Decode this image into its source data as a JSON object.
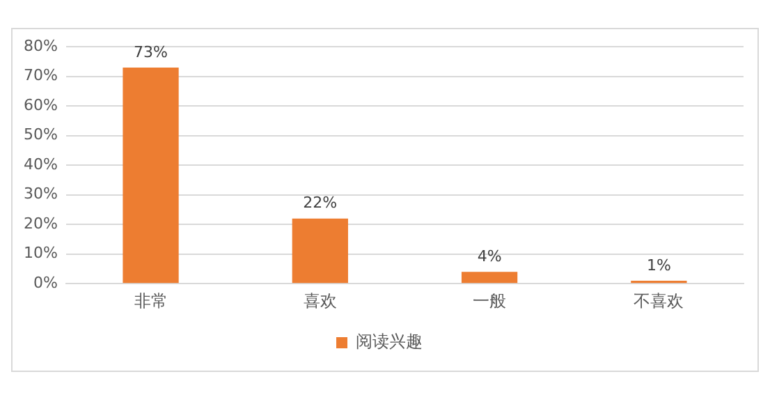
{
  "chart_data": {
    "type": "bar",
    "categories": [
      "非常",
      "喜欢",
      "一般",
      "不喜欢"
    ],
    "series": [
      {
        "name": "阅读兴趣",
        "color": "#ed7d31",
        "values": [
          73,
          22,
          4,
          1
        ],
        "value_labels": [
          "73%",
          "22%",
          "4%",
          "1%"
        ]
      }
    ],
    "ylim": [
      0,
      80
    ],
    "yticks": [
      {
        "value": 0,
        "label": "0%"
      },
      {
        "value": 10,
        "label": "10%"
      },
      {
        "value": 20,
        "label": "20%"
      },
      {
        "value": 30,
        "label": "30%"
      },
      {
        "value": 40,
        "label": "40%"
      },
      {
        "value": 50,
        "label": "50%"
      },
      {
        "value": 60,
        "label": "60%"
      },
      {
        "value": 70,
        "label": "70%"
      },
      {
        "value": 80,
        "label": "80%"
      }
    ],
    "grid": "y",
    "legend": "bottom"
  }
}
